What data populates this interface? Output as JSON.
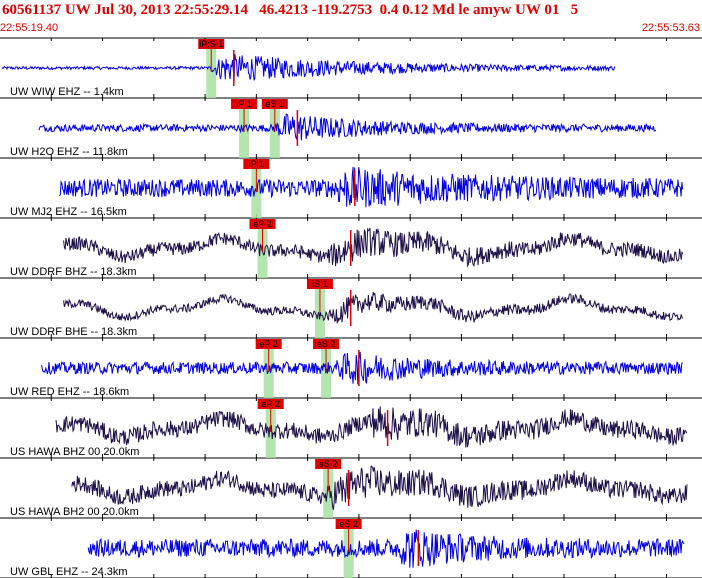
{
  "header": {
    "title": "60561137 UW Jul 30, 2013 22:55:29.14   46.4213 -119.2753  0.4 0.12 Md le amyw UW 01   5",
    "start_time": "22:55:19.40",
    "end_time": "22:55:53.63"
  },
  "colors": {
    "title": "#e00000",
    "trace_vertical": "#0000e0",
    "trace_horizontal": "#20104a",
    "pick_box": "#e00000",
    "pick_window": "#a8e0a0",
    "grid": "#000000",
    "theoretical_curve": "#000000"
  },
  "chart_data": {
    "type": "line",
    "title": "60561137 UW Jul 30, 2013 22:55:29.14   46.4213 -119.2753  0.4 0.12 Md le amyw UW 01   5",
    "x_range": [
      "22:55:19.40",
      "22:55:53.63"
    ],
    "x_range_seconds": [
      0,
      34.23
    ],
    "grid": true,
    "grid_interval_seconds": 2.5,
    "series": [
      {
        "name": "UW WIW EHZ -- 1.4km",
        "component": "vertical",
        "data_start_s": 0.1,
        "data_end_s": 30.0,
        "peak_s": 10.9,
        "coda_s": 7.0,
        "amp": 0.45,
        "noise": 0.05,
        "picks": [
          {
            "label": "iP:S 1",
            "time_s": 10.3
          }
        ]
      },
      {
        "name": "UW H2O EHZ -- 11.8km",
        "component": "vertical",
        "data_start_s": 1.9,
        "data_end_s": 32.0,
        "peak_s": 14.0,
        "coda_s": 4.0,
        "amp": 0.4,
        "noise": 0.12,
        "picks": [
          {
            "label": "iP 1",
            "time_s": 11.9
          },
          {
            "label": "eS 1",
            "time_s": 13.4
          }
        ]
      },
      {
        "name": "UW MJ2 EHZ -- 16.5km",
        "component": "vertical",
        "data_start_s": 2.9,
        "data_end_s": 33.3,
        "peak_s": 16.8,
        "coda_s": 6.0,
        "amp": 0.45,
        "noise": 0.3,
        "picks": [
          {
            "label": "iP 1",
            "time_s": 12.5
          }
        ]
      },
      {
        "name": "UW DDRF BHZ -- 18.3km",
        "component": "horizontal",
        "data_start_s": 3.1,
        "data_end_s": 33.3,
        "peak_s": 16.6,
        "coda_s": 5.0,
        "amp": 0.35,
        "noise": 0.22,
        "picks": [
          {
            "label": "eP 2",
            "time_s": 12.8
          }
        ]
      },
      {
        "name": "UW DDRF BHE -- 18.3km",
        "component": "horizontal",
        "data_start_s": 3.1,
        "data_end_s": 33.3,
        "peak_s": 16.6,
        "coda_s": 5.0,
        "amp": 0.25,
        "noise": 0.14,
        "picks": [
          {
            "label": "iS 1",
            "time_s": 15.6
          }
        ]
      },
      {
        "name": "UW RED EHZ -- 18.6km",
        "component": "vertical",
        "data_start_s": 2.0,
        "data_end_s": 33.3,
        "peak_s": 17.0,
        "coda_s": 3.5,
        "amp": 0.4,
        "noise": 0.2,
        "picks": [
          {
            "label": "eP 2",
            "time_s": 13.1
          },
          {
            "label": "eS 2",
            "time_s": 15.9
          }
        ]
      },
      {
        "name": "US HAWA BHZ 00 20.0km",
        "component": "horizontal",
        "data_start_s": 2.7,
        "data_end_s": 33.5,
        "peak_s": 18.4,
        "coda_s": 4.0,
        "amp": 0.35,
        "noise": 0.28,
        "picks": [
          {
            "label": "eP 2",
            "time_s": 13.2
          }
        ]
      },
      {
        "name": "US HAWA BH2 00 20.0km",
        "component": "horizontal",
        "data_start_s": 3.5,
        "data_end_s": 33.5,
        "peak_s": 16.5,
        "coda_s": 5.0,
        "amp": 0.35,
        "noise": 0.28,
        "picks": [
          {
            "label": "eS 2",
            "time_s": 16.0
          }
        ]
      },
      {
        "name": "UW GBL EHZ -- 24.3km",
        "component": "vertical",
        "data_start_s": 4.3,
        "data_end_s": 33.4,
        "peak_s": 19.9,
        "coda_s": 3.0,
        "amp": 0.45,
        "noise": 0.3,
        "picks": [
          {
            "label": "eS 2",
            "time_s": 17.0
          }
        ]
      }
    ]
  }
}
